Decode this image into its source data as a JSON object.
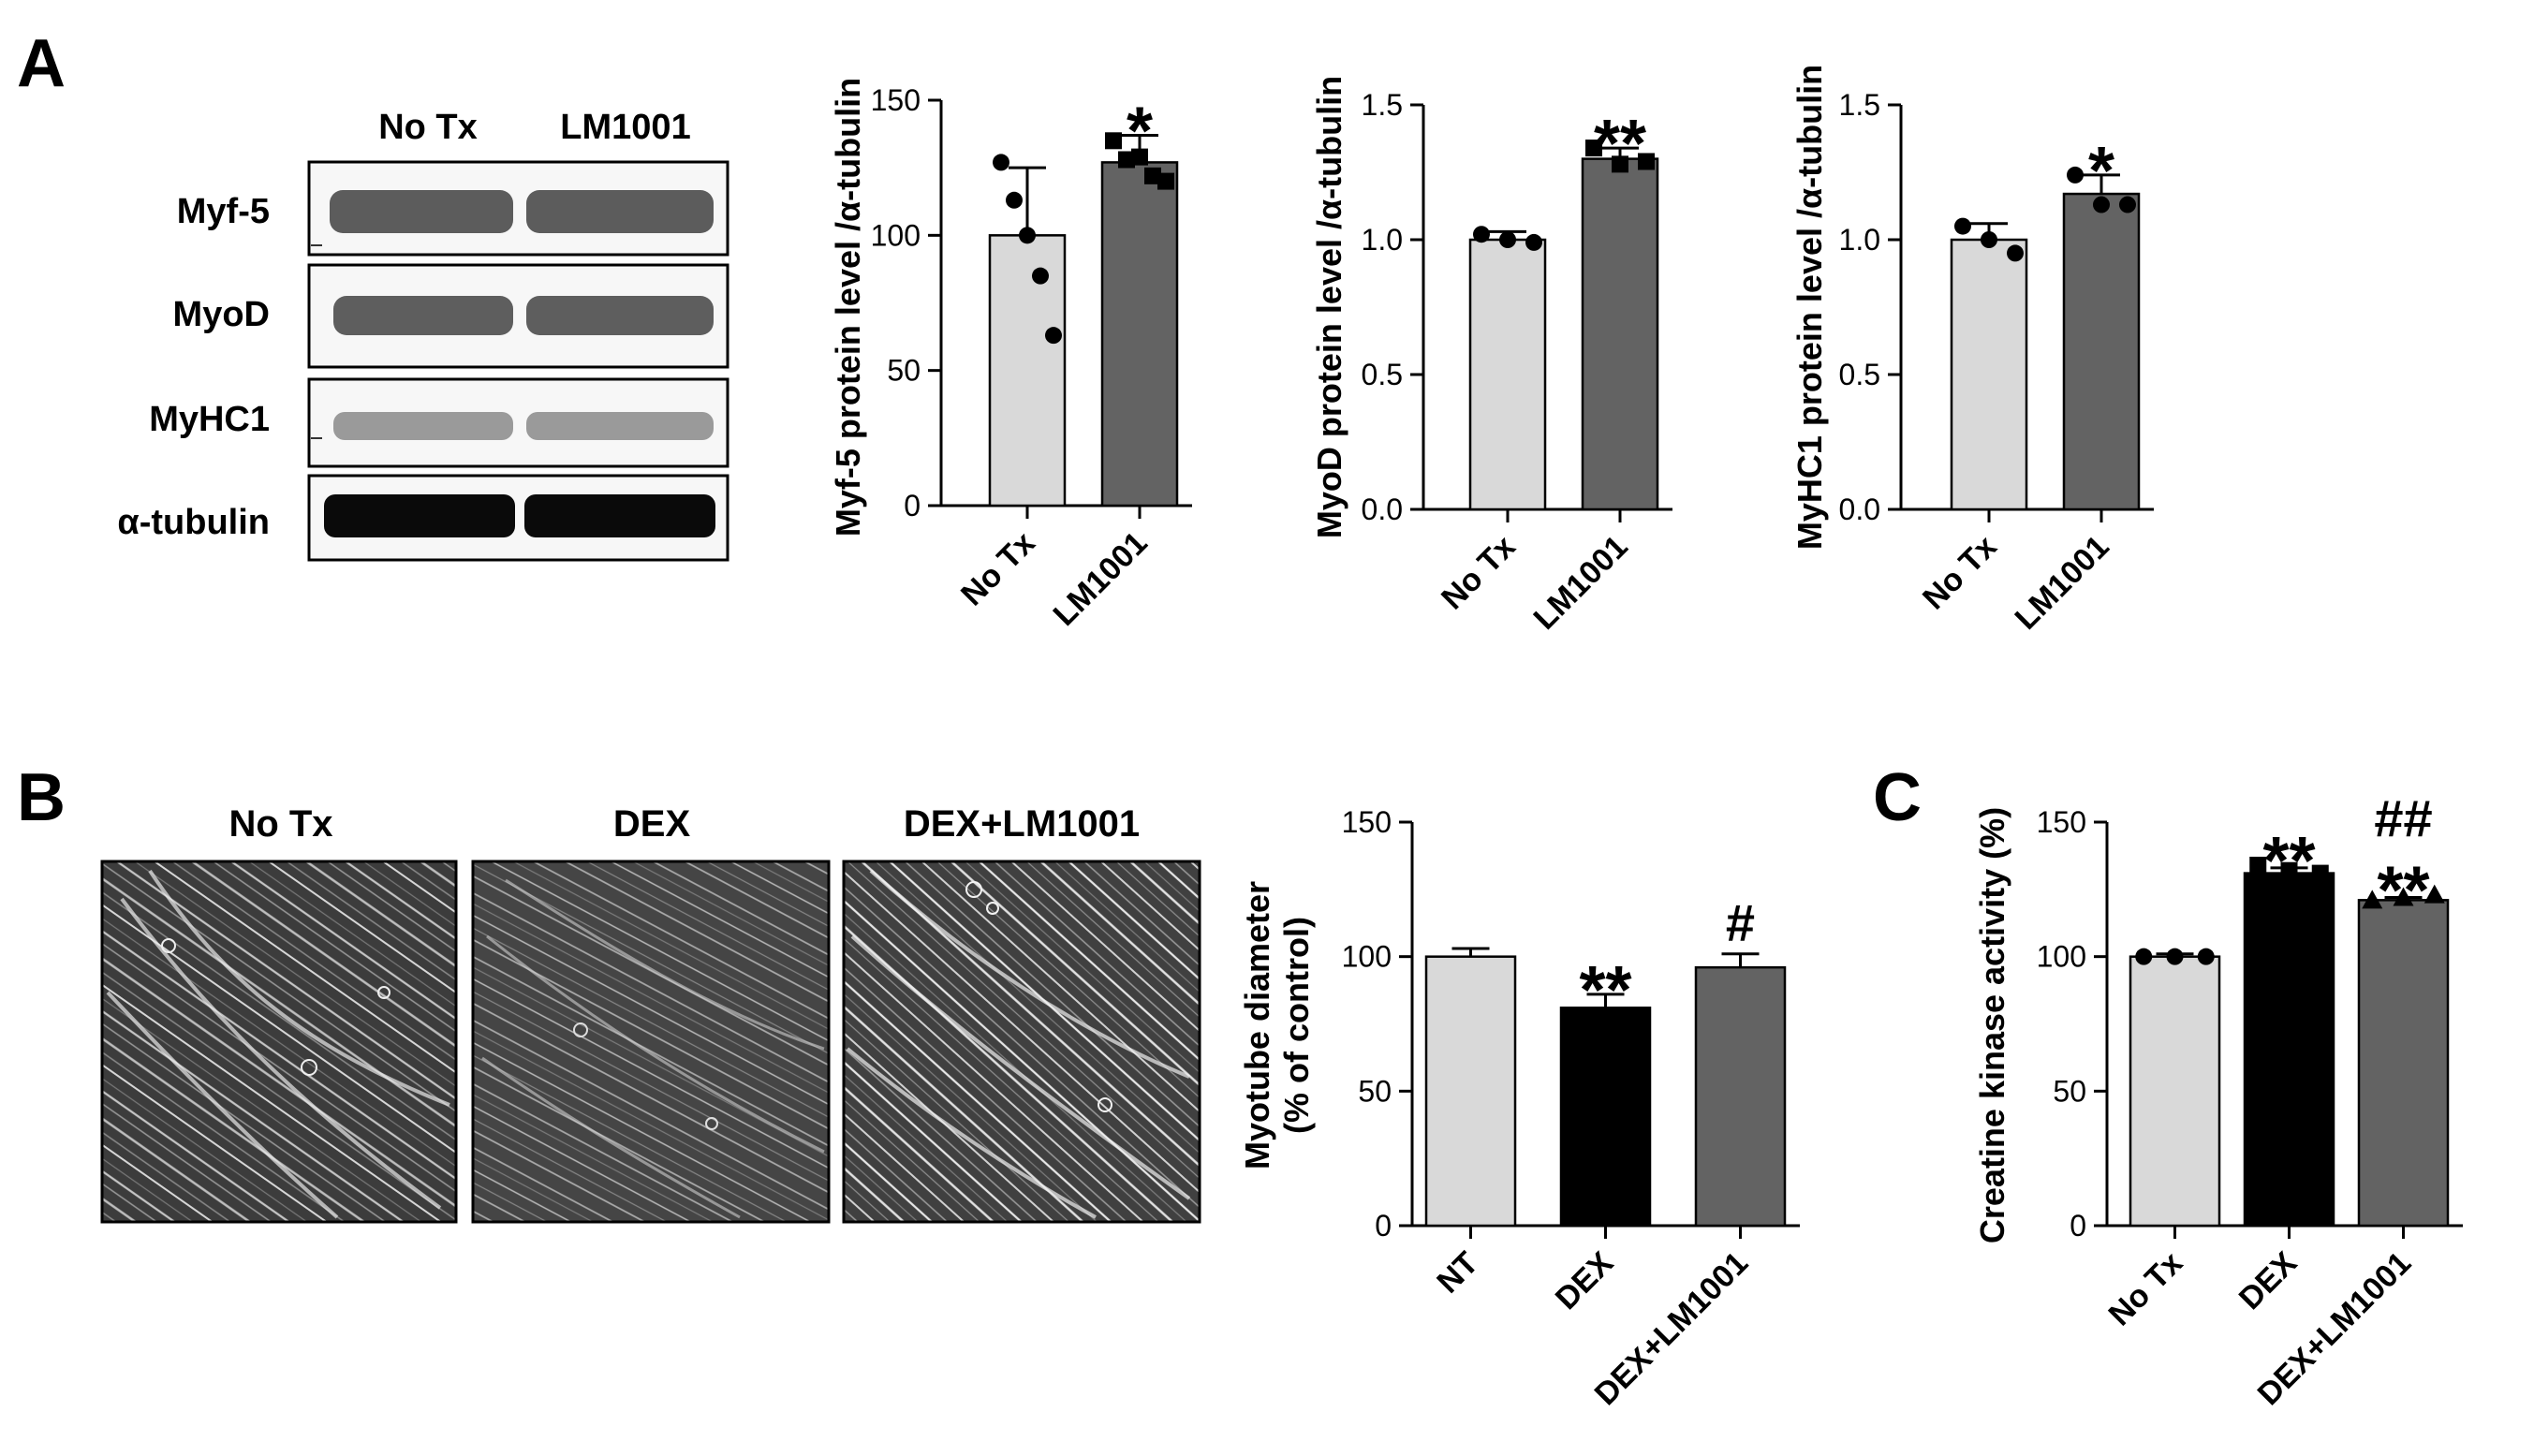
{
  "panels": {
    "A": {
      "letter": "A",
      "blot": {
        "lanes": [
          "No Tx",
          "LM1001"
        ],
        "rows": [
          {
            "label": "Myf-5",
            "band_color": "#5c5c5c"
          },
          {
            "label": "MyoD",
            "band_color": "#5e5e5e"
          },
          {
            "label": "MyHC1",
            "band_color": "#9a9a9a"
          },
          {
            "label": "α-tubulin",
            "band_color": "#0a0a0a"
          }
        ]
      }
    },
    "B": {
      "letter": "B",
      "images": [
        {
          "label": "No Tx"
        },
        {
          "label": "DEX"
        },
        {
          "label": "DEX+LM1001"
        }
      ]
    },
    "C": {
      "letter": "C"
    }
  },
  "chart_data": [
    {
      "id": "myf5",
      "type": "bar",
      "categories": [
        "No Tx",
        "LM1001"
      ],
      "values": [
        100,
        127
      ],
      "errors": [
        25,
        10
      ],
      "points": [
        [
          127,
          113,
          100,
          85,
          63
        ],
        [
          135,
          128,
          129,
          122,
          120
        ]
      ],
      "point_shape": [
        "circle",
        "square"
      ],
      "bar_colors": [
        "#d9d9d9",
        "#636363"
      ],
      "ylabel": "Myf-5 protein level /α-tubulin",
      "ylim": [
        0,
        150
      ],
      "yticks": [
        0,
        50,
        100,
        150
      ],
      "annotations": [
        "",
        "*"
      ]
    },
    {
      "id": "myod",
      "type": "bar",
      "categories": [
        "No Tx",
        "LM1001"
      ],
      "values": [
        1.0,
        1.3
      ],
      "errors": [
        0.03,
        0.04
      ],
      "points": [
        [
          1.02,
          1.0,
          0.99
        ],
        [
          1.34,
          1.28,
          1.29
        ]
      ],
      "point_shape": [
        "circle",
        "square"
      ],
      "bar_colors": [
        "#d9d9d9",
        "#636363"
      ],
      "ylabel": "MyoD protein level /α-tubulin",
      "ylim": [
        0,
        1.5
      ],
      "yticks": [
        "0.0",
        "0.5",
        "1.0",
        "1.5"
      ],
      "annotations": [
        "",
        "**"
      ]
    },
    {
      "id": "myhc1",
      "type": "bar",
      "categories": [
        "No Tx",
        "LM1001"
      ],
      "values": [
        1.0,
        1.17
      ],
      "errors": [
        0.06,
        0.07
      ],
      "points": [
        [
          1.05,
          1.0,
          0.95
        ],
        [
          1.24,
          1.13,
          1.13
        ]
      ],
      "point_shape": [
        "circle",
        "circle"
      ],
      "bar_colors": [
        "#d9d9d9",
        "#636363"
      ],
      "ylabel": "MyHC1 protein level /α-tubulin",
      "ylim": [
        0,
        1.5
      ],
      "yticks": [
        "0.0",
        "0.5",
        "1.0",
        "1.5"
      ],
      "annotations": [
        "",
        "*"
      ]
    },
    {
      "id": "myotube",
      "type": "bar",
      "categories": [
        "NT",
        "DEX",
        "DEX+LM1001"
      ],
      "values": [
        100,
        81,
        96
      ],
      "errors": [
        3,
        5,
        5
      ],
      "points": [
        [],
        [],
        []
      ],
      "bar_colors": [
        "#d9d9d9",
        "#000000",
        "#636363"
      ],
      "ylabel": "Myotube diameter",
      "ylabel2": "(% of control)",
      "ylim": [
        0,
        150
      ],
      "yticks": [
        0,
        50,
        100,
        150
      ],
      "annotations": [
        "",
        "**",
        "#"
      ]
    },
    {
      "id": "ck",
      "type": "bar",
      "categories": [
        "No Tx",
        "DEX",
        "DEX+LM1001"
      ],
      "values": [
        100,
        131,
        121
      ],
      "errors": [
        1,
        2,
        1
      ],
      "points": [
        [
          100,
          100,
          100
        ],
        [
          134,
          132,
          131
        ],
        [
          121,
          122,
          123
        ]
      ],
      "point_shape": [
        "circle",
        "square",
        "triangle"
      ],
      "bar_colors": [
        "#d9d9d9",
        "#000000",
        "#636363"
      ],
      "ylabel": "Creatine kinase activity (%)",
      "ylim": [
        0,
        150
      ],
      "yticks": [
        0,
        50,
        100,
        150
      ],
      "annotations": [
        "",
        "**",
        "**"
      ],
      "annotations2": [
        "",
        "",
        "##"
      ]
    }
  ]
}
